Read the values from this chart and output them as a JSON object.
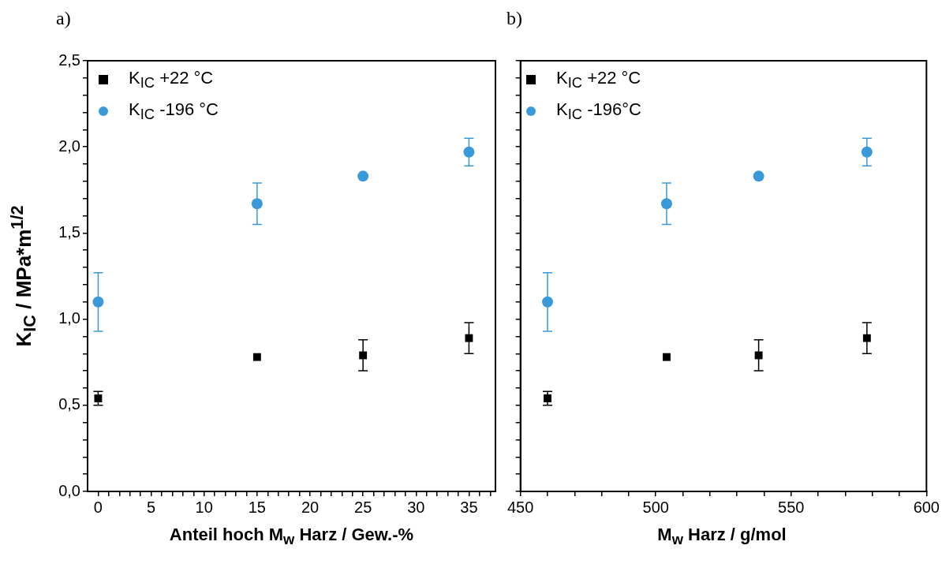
{
  "chart_data": [
    {
      "type": "scatter",
      "title": "a)",
      "xlabel": "Anteil hoch M$_{w}$ Harz / Gew.-%",
      "ylabel": "K$_{IC}$ / MPa*m$^{1/2}$",
      "legend": "top left",
      "x": [
        0,
        15,
        25,
        35
      ],
      "series": [
        {
          "name": "K$_{IC}$ +22 °C",
          "color": "#000000",
          "marker": "square",
          "values": [
            0.54,
            0.78,
            0.79,
            0.89
          ],
          "errors": [
            [
              0.5,
              0.58
            ],
            null,
            [
              0.7,
              0.88
            ],
            [
              0.8,
              0.98
            ]
          ]
        },
        {
          "name": "K$_{IC}$ -196 °C",
          "color": "#3a9ad9",
          "marker": "circle",
          "values": [
            1.1,
            1.67,
            1.83,
            1.97
          ],
          "errors": [
            [
              0.93,
              1.27
            ],
            [
              1.55,
              1.79
            ],
            null,
            [
              1.89,
              2.05
            ]
          ]
        }
      ],
      "xlim": [
        -1,
        37.5
      ],
      "xticks": [
        0,
        {
          "value": 1,
          "label": null
        },
        {
          "value": 2,
          "label": null
        },
        {
          "value": 3,
          "label": null
        },
        {
          "value": 4,
          "label": null
        },
        5,
        {
          "value": 6,
          "label": null
        },
        {
          "value": 7,
          "label": null
        },
        {
          "value": 8,
          "label": null
        },
        {
          "value": 9,
          "label": null
        },
        10,
        {
          "value": 11,
          "label": null
        },
        {
          "value": 12,
          "label": null
        },
        {
          "value": 13,
          "label": null
        },
        {
          "value": 14,
          "label": null
        },
        15,
        {
          "value": 16,
          "label": null
        },
        {
          "value": 17,
          "label": null
        },
        {
          "value": 18,
          "label": null
        },
        {
          "value": 19,
          "label": null
        },
        20,
        {
          "value": 21,
          "label": null
        },
        {
          "value": 22,
          "label": null
        },
        {
          "value": 23,
          "label": null
        },
        {
          "value": 24,
          "label": null
        },
        25,
        {
          "value": 26,
          "label": null
        },
        {
          "value": 27,
          "label": null
        },
        {
          "value": 28,
          "label": null
        },
        {
          "value": 29,
          "label": null
        },
        30,
        {
          "value": 31,
          "label": null
        },
        {
          "value": 32,
          "label": null
        },
        {
          "value": 33,
          "label": null
        },
        {
          "value": 34,
          "label": null
        },
        35,
        {
          "value": 36,
          "label": null
        },
        {
          "value": 37,
          "label": null
        }
      ],
      "ylim": [
        0,
        2.5
      ],
      "yticks": [
        {
          "value": 0,
          "label": "0,0"
        },
        {
          "value": 0.1,
          "label": null
        },
        {
          "value": 0.2,
          "label": null
        },
        {
          "value": 0.3,
          "label": null
        },
        {
          "value": 0.4,
          "label": null
        },
        {
          "value": 0.5,
          "label": "0,5"
        },
        {
          "value": 0.6,
          "label": null
        },
        {
          "value": 0.7,
          "label": null
        },
        {
          "value": 0.8,
          "label": null
        },
        {
          "value": 0.9,
          "label": null
        },
        {
          "value": 1,
          "label": "1,0"
        },
        {
          "value": 1.1,
          "label": null
        },
        {
          "value": 1.2,
          "label": null
        },
        {
          "value": 1.3,
          "label": null
        },
        {
          "value": 1.4,
          "label": null
        },
        {
          "value": 1.5,
          "label": "1,5"
        },
        {
          "value": 1.6,
          "label": null
        },
        {
          "value": 1.7,
          "label": null
        },
        {
          "value": 1.8,
          "label": null
        },
        {
          "value": 1.9,
          "label": null
        },
        {
          "value": 2,
          "label": "2,0"
        },
        {
          "value": 2.1,
          "label": null
        },
        {
          "value": 2.2,
          "label": null
        },
        {
          "value": 2.3,
          "label": null
        },
        {
          "value": 2.4,
          "label": null
        },
        {
          "value": 2.5,
          "label": "2,5"
        }
      ]
    },
    {
      "type": "scatter",
      "title": "b)",
      "xlabel": "M$_{w}$ Harz / g/mol",
      "legend": "top left",
      "tick_labels": "x",
      "x": [
        460,
        504,
        538,
        578
      ],
      "series": [
        {
          "name": "K$_{IC}$ +22 °C",
          "color": "#000000",
          "marker": "square",
          "values": [
            0.54,
            0.78,
            0.79,
            0.89
          ],
          "errors": [
            [
              0.5,
              0.58
            ],
            null,
            [
              0.7,
              0.88
            ],
            [
              0.8,
              0.98
            ]
          ]
        },
        {
          "name": "K$_{IC}$ -196°C",
          "color": "#3a9ad9",
          "marker": "circle",
          "values": [
            1.1,
            1.67,
            1.83,
            1.97
          ],
          "errors": [
            [
              0.93,
              1.27
            ],
            [
              1.55,
              1.79
            ],
            null,
            [
              1.89,
              2.05
            ]
          ]
        }
      ],
      "xlim": [
        450,
        600
      ],
      "xticks": [
        450,
        {
          "value": 460,
          "label": null
        },
        {
          "value": 470,
          "label": null
        },
        {
          "value": 480,
          "label": null
        },
        {
          "value": 490,
          "label": null
        },
        500,
        {
          "value": 510,
          "label": null
        },
        {
          "value": 520,
          "label": null
        },
        {
          "value": 530,
          "label": null
        },
        {
          "value": 540,
          "label": null
        },
        550,
        {
          "value": 560,
          "label": null
        },
        {
          "value": 570,
          "label": null
        },
        {
          "value": 580,
          "label": null
        },
        {
          "value": 590,
          "label": null
        },
        600
      ],
      "ylim": [
        0,
        2.5
      ],
      "yticks": [
        {
          "value": 0,
          "label": null
        },
        {
          "value": 0.1,
          "label": null
        },
        {
          "value": 0.2,
          "label": null
        },
        {
          "value": 0.3,
          "label": null
        },
        {
          "value": 0.4,
          "label": null
        },
        {
          "value": 0.5,
          "label": null
        },
        {
          "value": 0.6,
          "label": null
        },
        {
          "value": 0.7,
          "label": null
        },
        {
          "value": 0.8,
          "label": null
        },
        {
          "value": 0.9,
          "label": null
        },
        {
          "value": 1,
          "label": null
        },
        {
          "value": 1.1,
          "label": null
        },
        {
          "value": 1.2,
          "label": null
        },
        {
          "value": 1.3,
          "label": null
        },
        {
          "value": 1.4,
          "label": null
        },
        {
          "value": 1.5,
          "label": null
        },
        {
          "value": 1.6,
          "label": null
        },
        {
          "value": 1.7,
          "label": null
        },
        {
          "value": 1.8,
          "label": null
        },
        {
          "value": 1.9,
          "label": null
        },
        {
          "value": 2,
          "label": null
        },
        {
          "value": 2.1,
          "label": null
        },
        {
          "value": 2.2,
          "label": null
        },
        {
          "value": 2.3,
          "label": null
        },
        {
          "value": 2.4,
          "label": null
        },
        {
          "value": 2.5,
          "label": null
        }
      ]
    }
  ]
}
